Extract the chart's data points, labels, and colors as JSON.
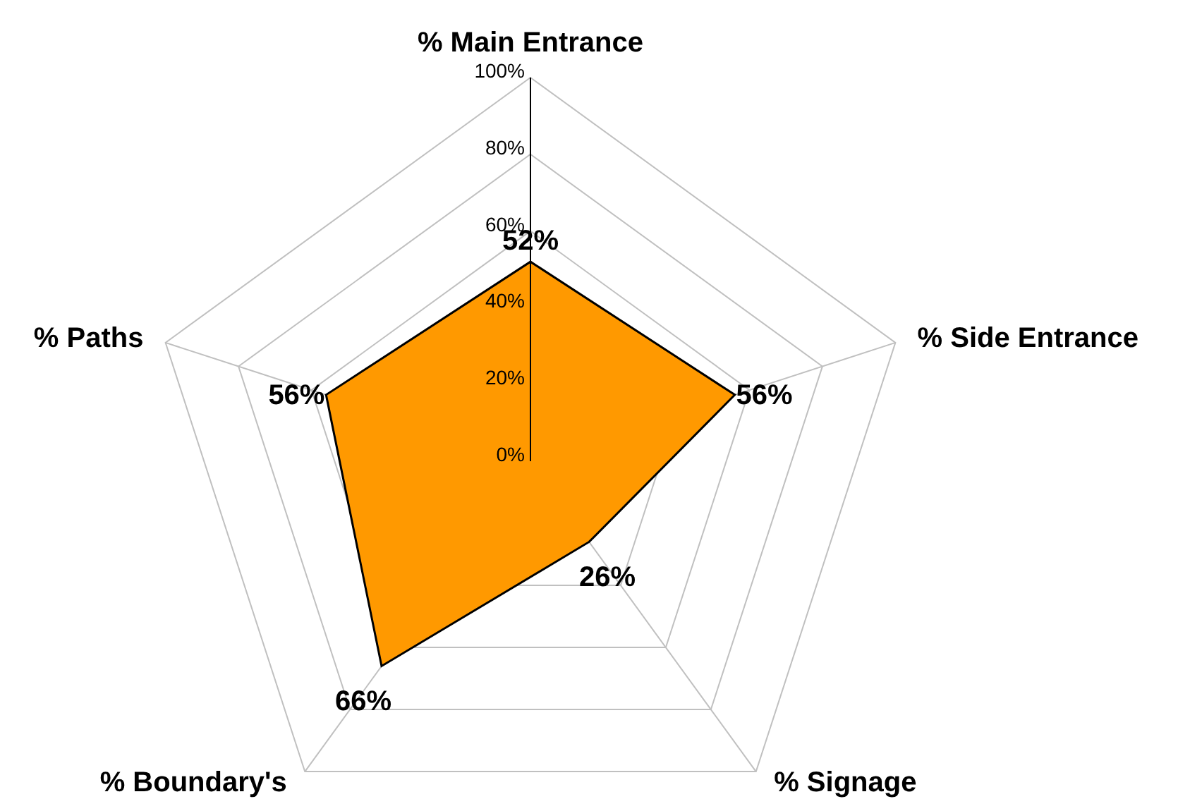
{
  "chart_data": {
    "type": "radar",
    "categories": [
      "% Main Entrance",
      "% Side Entrance",
      "% Signage",
      "% Boundary's",
      "% Paths"
    ],
    "series": [
      {
        "color": "#ff9900",
        "values": [
          52,
          56,
          26,
          66,
          56
        ],
        "value_labels": [
          "52%",
          "56%",
          "26%",
          "66%",
          "56%"
        ]
      }
    ],
    "ylim": [
      0,
      100
    ],
    "yticks": [
      {
        "value": 0,
        "label": "0%"
      },
      {
        "value": 20,
        "label": "20%"
      },
      {
        "value": 40,
        "label": "40%"
      },
      {
        "value": 60,
        "label": "60%"
      },
      {
        "value": 80,
        "label": "80%"
      },
      {
        "value": 100,
        "label": "100%"
      }
    ],
    "grid": true
  }
}
